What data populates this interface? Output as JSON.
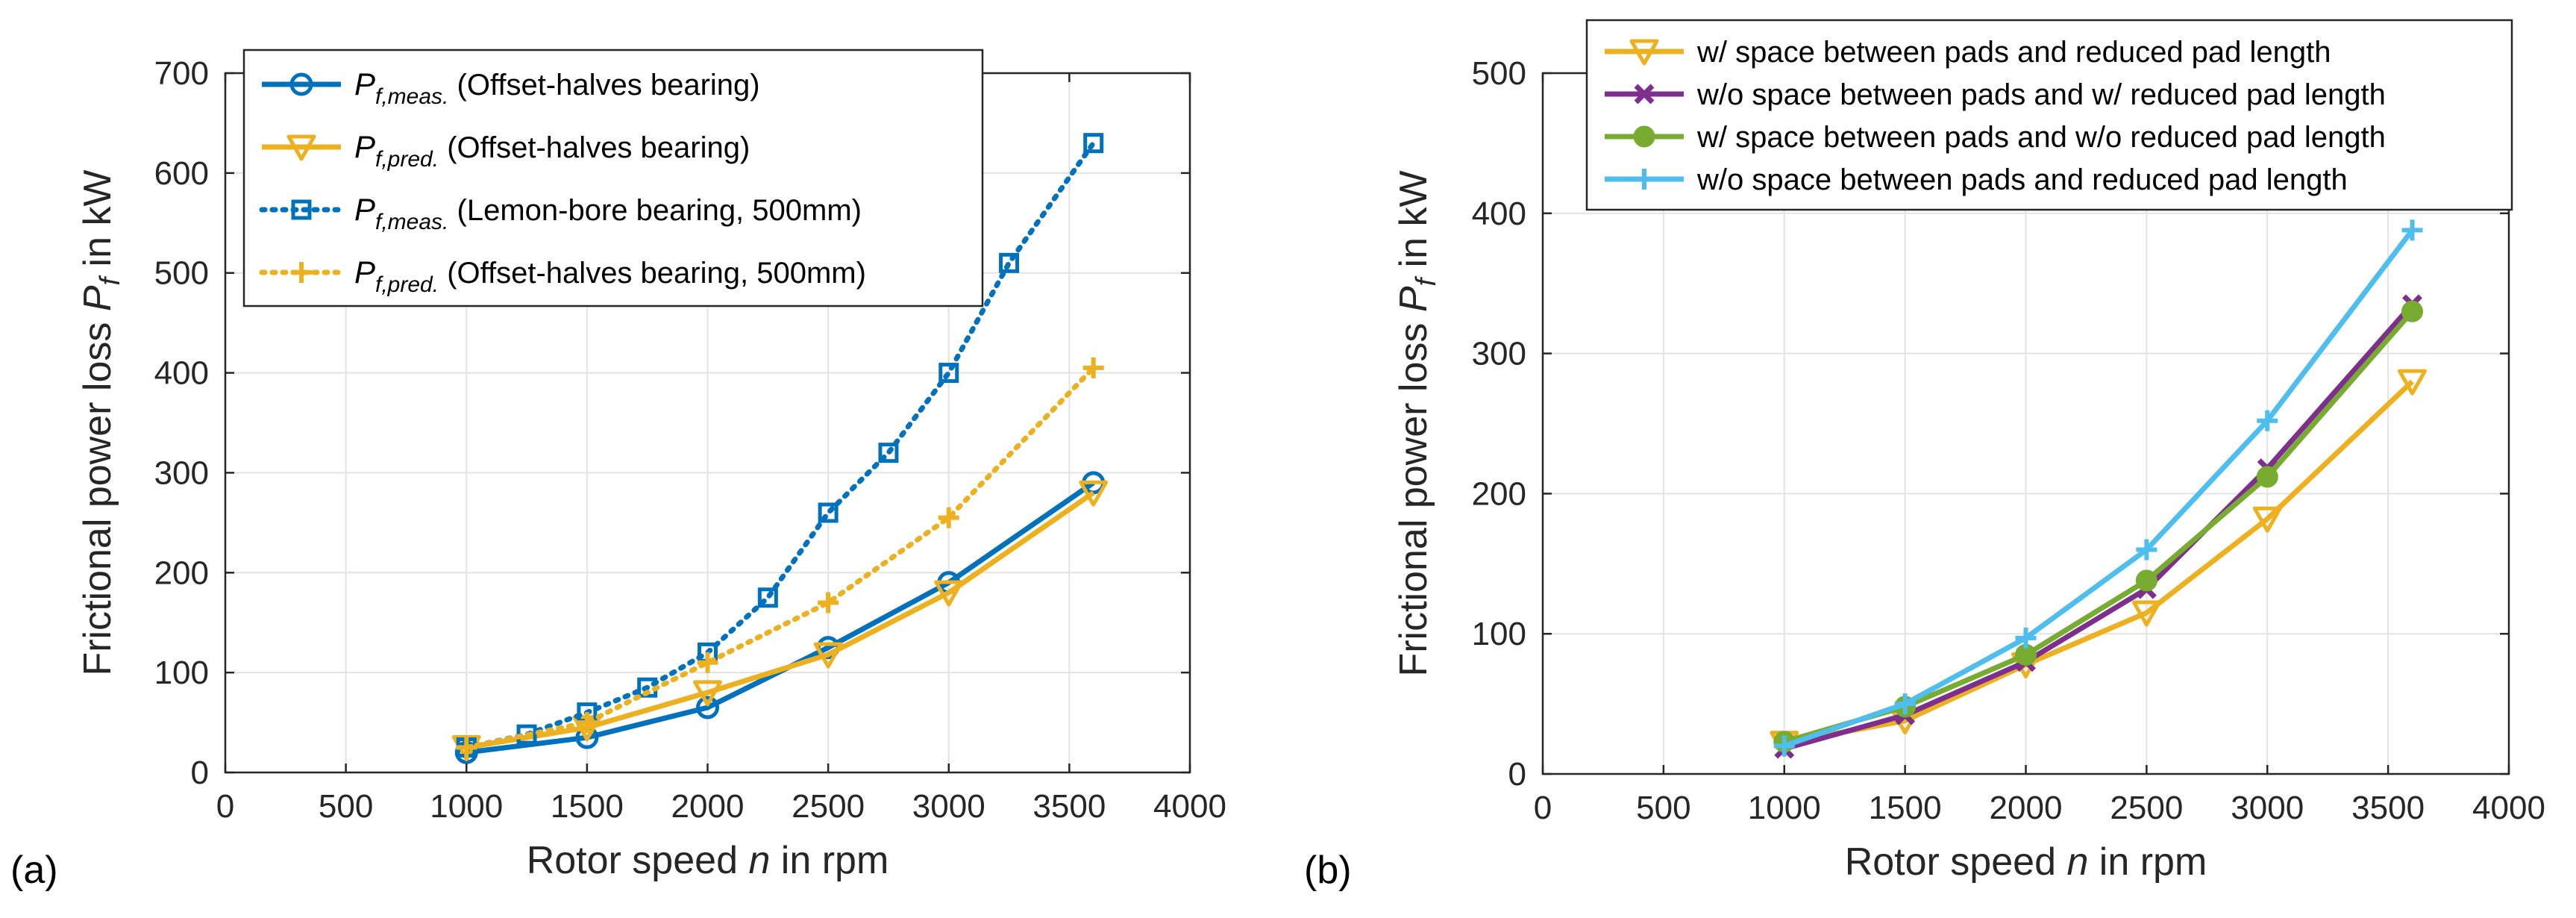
{
  "panel_labels": [
    "(a)",
    "(b)"
  ],
  "chart_data": [
    {
      "type": "line",
      "panel": "(a)",
      "xlabel": "Rotor speed n in rpm",
      "xlabel_parts": {
        "pre": "Rotor speed ",
        "var": "n",
        "post": " in rpm"
      },
      "ylabel": "Frictional power loss P_f in kW",
      "ylabel_parts": {
        "pre": "Frictional power loss ",
        "var": "P",
        "sub": "f",
        "post": " in kW"
      },
      "xlim": [
        0,
        4000
      ],
      "ylim": [
        0,
        700
      ],
      "xticks": [
        0,
        500,
        1000,
        1500,
        2000,
        2500,
        3000,
        3500,
        4000
      ],
      "yticks": [
        0,
        100,
        200,
        300,
        400,
        500,
        600,
        700
      ],
      "grid": true,
      "legend_position": "top-left",
      "series": [
        {
          "name": "P_f,meas. (Offset-halves bearing)",
          "sym": "P",
          "sub": "f,meas.",
          "label": "(Offset-halves bearing)",
          "color": "#0072BD",
          "style": "solid",
          "marker": "circle",
          "x": [
            1000,
            1500,
            2000,
            2500,
            3000,
            3600
          ],
          "y": [
            20,
            35,
            65,
            125,
            190,
            290
          ]
        },
        {
          "name": "P_f,pred. (Offset-halves bearing)",
          "sym": "P",
          "sub": "f,pred.",
          "label": "(Offset-halves bearing)",
          "color": "#EDB120",
          "style": "solid",
          "marker": "triangle-down",
          "x": [
            1000,
            1500,
            2000,
            2500,
            3000,
            3600
          ],
          "y": [
            25,
            45,
            80,
            118,
            180,
            280
          ]
        },
        {
          "name": "P_f,meas. (Lemon-bore bearing, 500mm)",
          "sym": "P",
          "sub": "f,meas.",
          "label": "(Lemon-bore bearing, 500mm)",
          "color": "#0072BD",
          "style": "dotted",
          "marker": "square",
          "x": [
            1000,
            1250,
            1500,
            1750,
            2000,
            2250,
            2500,
            2750,
            3000,
            3250,
            3600
          ],
          "y": [
            25,
            38,
            60,
            85,
            120,
            175,
            260,
            320,
            400,
            510,
            630
          ]
        },
        {
          "name": "P_f,pred. (Offset-halves bearing, 500mm)",
          "sym": "P",
          "sub": "f,pred.",
          "label": "(Offset-halves bearing, 500mm)",
          "color": "#EDB120",
          "style": "dotted",
          "marker": "plus",
          "x": [
            1000,
            1500,
            2000,
            2500,
            3000,
            3600
          ],
          "y": [
            25,
            50,
            110,
            170,
            255,
            405
          ]
        }
      ]
    },
    {
      "type": "line",
      "panel": "(b)",
      "xlabel": "Rotor speed n in rpm",
      "xlabel_parts": {
        "pre": "Rotor speed ",
        "var": "n",
        "post": " in rpm"
      },
      "ylabel": "Frictional power loss P_f in kW",
      "ylabel_parts": {
        "pre": "Frictional power loss ",
        "var": "P",
        "sub": "f",
        "post": " in kW"
      },
      "xlim": [
        0,
        4000
      ],
      "ylim": [
        0,
        500
      ],
      "xticks": [
        0,
        500,
        1000,
        1500,
        2000,
        2500,
        3000,
        3500,
        4000
      ],
      "yticks": [
        0,
        100,
        200,
        300,
        400,
        500
      ],
      "grid": true,
      "legend_position": "top",
      "series": [
        {
          "name": "w/ space between pads and reduced pad length",
          "label": "w/ space between pads and reduced pad length",
          "color": "#EDB120",
          "style": "solid",
          "marker": "triangle-down",
          "x": [
            1000,
            1500,
            2000,
            2500,
            3000,
            3600
          ],
          "y": [
            22,
            38,
            78,
            115,
            182,
            280
          ]
        },
        {
          "name": "w/o space between pads and w/ reduced pad length",
          "label": "w/o space between pads and w/ reduced pad length",
          "color": "#7E2F8E",
          "style": "solid",
          "marker": "x",
          "x": [
            1000,
            1500,
            2000,
            2500,
            3000,
            3600
          ],
          "y": [
            18,
            42,
            80,
            132,
            218,
            335
          ]
        },
        {
          "name": "w/ space between pads and w/o reduced pad length",
          "label": "w/ space between pads and w/o reduced pad length",
          "color": "#77AC30",
          "style": "solid",
          "marker": "circle-filled",
          "x": [
            1000,
            1500,
            2000,
            2500,
            3000,
            3600
          ],
          "y": [
            23,
            48,
            85,
            138,
            212,
            330
          ]
        },
        {
          "name": "w/o space between pads and reduced pad length",
          "label": "w/o space between pads and reduced pad length",
          "color": "#4DBEEE",
          "style": "solid",
          "marker": "plus",
          "x": [
            1000,
            1500,
            2000,
            2500,
            3000,
            3600
          ],
          "y": [
            20,
            50,
            97,
            160,
            252,
            388
          ]
        }
      ]
    }
  ]
}
